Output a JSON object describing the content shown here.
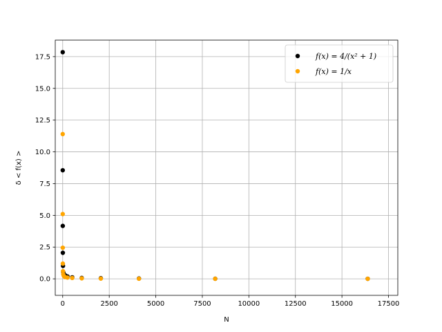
{
  "chart_data": {
    "type": "scatter",
    "xlabel": "N",
    "ylabel": "δ < f(x) >",
    "xlim": [
      -400,
      18000
    ],
    "ylim": [
      -1.3,
      18.8
    ],
    "xticks": [
      0,
      2500,
      5000,
      7500,
      10000,
      12500,
      15000,
      17500
    ],
    "xtick_labels": [
      "0",
      "2500",
      "5000",
      "7500",
      "10000",
      "12500",
      "15000",
      "17500"
    ],
    "yticks": [
      0,
      2.5,
      5,
      7.5,
      10,
      12.5,
      15,
      17.5
    ],
    "ytick_labels": [
      "0.0",
      "2.5",
      "5.0",
      "7.5",
      "10.0",
      "12.5",
      "15.0",
      "17.5"
    ],
    "grid": true,
    "legend_position": "top-right",
    "series": [
      {
        "name": "f(x) = 4/(x² + 1)",
        "color": "#000000",
        "x": [
          1,
          2,
          4,
          8,
          16,
          32,
          64,
          128,
          256,
          512,
          1024,
          2048,
          4096,
          8192,
          16384
        ],
        "y": [
          17.85,
          8.55,
          4.17,
          2.05,
          1.02,
          0.52,
          0.37,
          0.28,
          0.19,
          0.12,
          0.07,
          0.05,
          0.03,
          0.01,
          0.005
        ]
      },
      {
        "name": "f(x) = 1/x",
        "color": "#FFA500",
        "x": [
          1,
          2,
          4,
          8,
          16,
          32,
          64,
          128,
          256,
          512,
          1024,
          2048,
          4096,
          8192,
          16384
        ],
        "y": [
          11.4,
          5.1,
          2.45,
          1.2,
          0.6,
          0.35,
          0.22,
          0.14,
          0.1,
          0.07,
          0.04,
          0.02,
          0.01,
          0.005,
          0.002
        ]
      }
    ]
  }
}
